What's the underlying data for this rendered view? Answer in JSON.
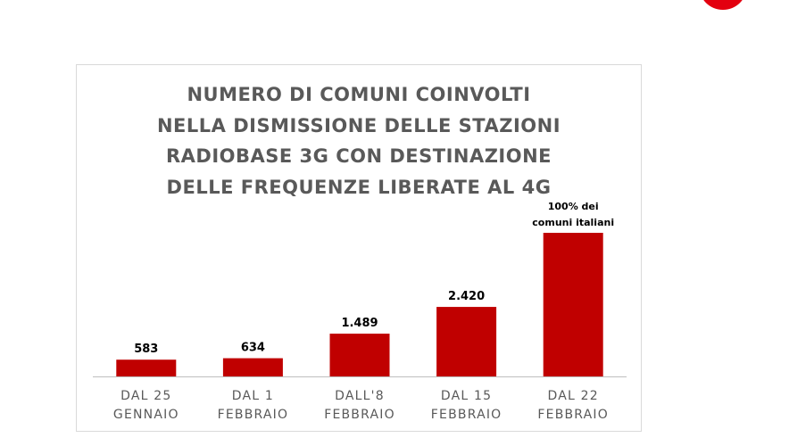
{
  "colors": {
    "bar": "#c00000",
    "badge": "#e3000f",
    "title": "#595959",
    "axis": "#bfbfbf"
  },
  "chart_data": {
    "type": "bar",
    "title": "NUMERO DI COMUNI COINVOLTI\nNELLA DISMISSIONE DELLE STAZIONI\nRADIOBASE 3G CON DESTINAZIONE\nDELLE FREQUENZE LIBERATE AL 4G",
    "categories": [
      [
        "DAL 25",
        "GENNAIO"
      ],
      [
        "DAL 1",
        "FEBBRAIO"
      ],
      [
        "DALL'8",
        "FEBBRAIO"
      ],
      [
        "DAL 15",
        "FEBBRAIO"
      ],
      [
        "DAL 22",
        "FEBBRAIO"
      ]
    ],
    "values": [
      583,
      634,
      1489,
      2420,
      5000
    ],
    "data_labels": [
      [
        "583"
      ],
      [
        "634"
      ],
      [
        "1.489"
      ],
      [
        "2.420"
      ],
      [
        "100% dei",
        "comuni italiani"
      ]
    ],
    "xlabel": "",
    "ylabel": "",
    "ylim": [
      0,
      5000
    ],
    "grid": false,
    "legend": "none"
  }
}
